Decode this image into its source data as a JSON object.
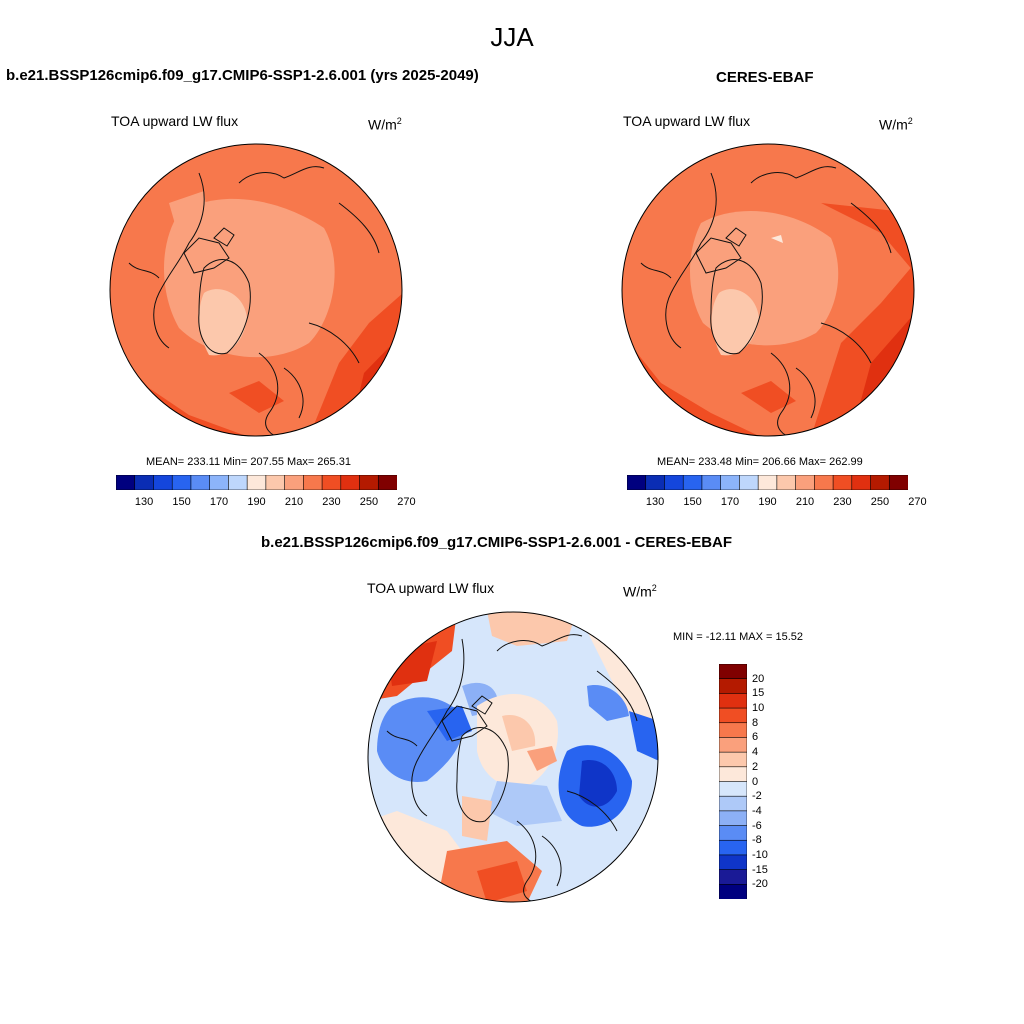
{
  "figure": {
    "title": "JJA"
  },
  "panels": [
    {
      "id": "model",
      "title": "b.e21.BSSP126cmip6.f09_g17.CMIP6-SSP1-2.6.001 (yrs 2025-2049)",
      "variable": "TOA upward LW flux",
      "units": "W/m",
      "units_sup": "2",
      "stats": "MEAN= 233.11  Min= 207.55  Max= 265.31",
      "stats_values": {
        "mean": 233.11,
        "min": 207.55,
        "max": 265.31
      }
    },
    {
      "id": "obs",
      "title": "CERES-EBAF",
      "variable": "TOA upward LW flux",
      "units": "W/m",
      "units_sup": "2",
      "stats": "MEAN= 233.48  Min= 206.66  Max= 262.99",
      "stats_values": {
        "mean": 233.48,
        "min": 206.66,
        "max": 262.99
      }
    },
    {
      "id": "diff",
      "title": "b.e21.BSSP126cmip6.f09_g17.CMIP6-SSP1-2.6.001 - CERES-EBAF",
      "variable": "TOA upward LW flux",
      "units": "W/m",
      "units_sup": "2",
      "stats": "MIN = -12.11 MAX =  15.52",
      "stats_values": {
        "min": -12.11,
        "max": 15.52
      }
    }
  ],
  "colorbar_abs": {
    "tick_labels": [
      "130",
      "150",
      "170",
      "190",
      "210",
      "230",
      "250",
      "270"
    ],
    "colors": [
      "#00007f",
      "#0a2db4",
      "#1446dc",
      "#2864f0",
      "#5a8cf5",
      "#8cb4fa",
      "#bed7fc",
      "#fde8da",
      "#fcc8ac",
      "#faa07c",
      "#f7784c",
      "#f04e23",
      "#e03010",
      "#b41a00",
      "#800000"
    ]
  },
  "colorbar_diff": {
    "tick_labels": [
      "20",
      "15",
      "10",
      "8",
      "6",
      "4",
      "2",
      "0",
      "-2",
      "-4",
      "-6",
      "-8",
      "-10",
      "-15",
      "-20"
    ],
    "colors": [
      "#800000",
      "#b41a00",
      "#e03010",
      "#f04e23",
      "#f7784c",
      "#faa07c",
      "#fcc8ac",
      "#fde8da",
      "#d6e6fb",
      "#aec9f8",
      "#8cb0f6",
      "#5a8cf5",
      "#2864f0",
      "#0f35c8",
      "#1a1a96",
      "#00007f"
    ]
  }
}
